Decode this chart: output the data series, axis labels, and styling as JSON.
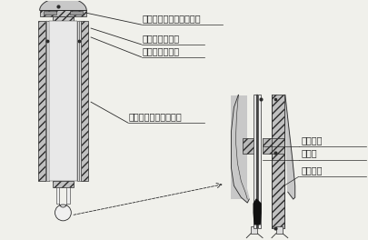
{
  "bg_color": "#f0f0eb",
  "line_color": "#2a2a2a",
  "labels": {
    "zenmai": "ぜんまい、及び、ファン",
    "kanshu": "温度計（举球）",
    "shitshu": "温度計（湿球）",
    "wet_part": "湿球感温部（ガーゼ）",
    "packing": "パッキン",
    "insulation": "断熱材",
    "inner_tube": "通風内筒"
  },
  "font_size": 7.0,
  "lw": 0.6
}
